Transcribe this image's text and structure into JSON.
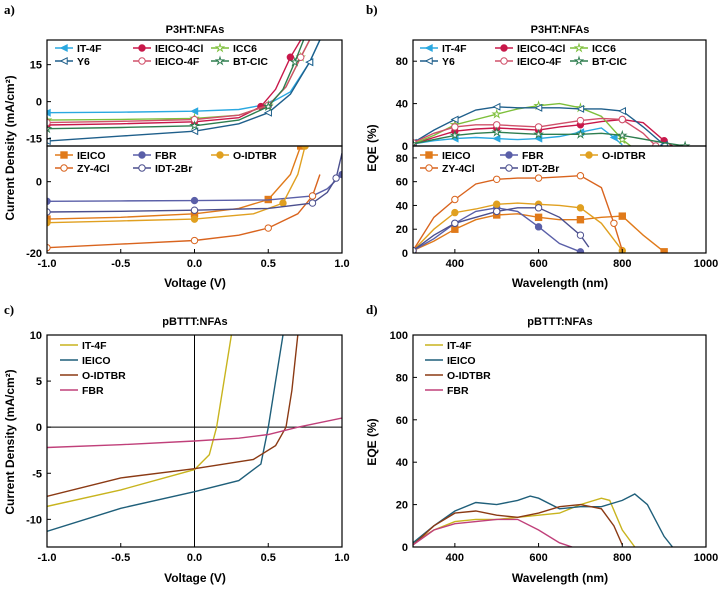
{
  "panel_labels": [
    "a)",
    "b)",
    "c)",
    "d)"
  ],
  "chart_data": [
    {
      "id": "a_top",
      "type": "line",
      "title": "P3HT:NFAs",
      "xlabel": "Voltage (V)",
      "ylabel": "Current Density (mA/cm²)",
      "xlim": [
        -1.0,
        1.0
      ],
      "ylim": [
        -18,
        25
      ],
      "yticks": [
        -15,
        0,
        15
      ],
      "xticks": [],
      "series": [
        {
          "name": "IT-4F",
          "color": "#2aa8e0",
          "marker": "triangle-left",
          "filled": true,
          "x": [
            -1.0,
            -0.5,
            0.0,
            0.3,
            0.5,
            0.65,
            0.78,
            0.85
          ],
          "y": [
            -4.5,
            -4.3,
            -3.9,
            -3.2,
            -1.0,
            4.0,
            16.0,
            25.0
          ]
        },
        {
          "name": "IEICO-4Cl",
          "color": "#c8184a",
          "marker": "circle",
          "filled": true,
          "x": [
            -1.0,
            -0.5,
            0.0,
            0.3,
            0.45,
            0.55,
            0.65,
            0.72
          ],
          "y": [
            -9.5,
            -9.0,
            -8.2,
            -6.5,
            -2.0,
            5.0,
            18.0,
            25.0
          ]
        },
        {
          "name": "ICC6",
          "color": "#7dbf3a",
          "marker": "star",
          "filled": false,
          "x": [
            -1.0,
            -0.5,
            0.0,
            0.3,
            0.5,
            0.62,
            0.72,
            0.78
          ],
          "y": [
            -7.5,
            -7.2,
            -6.8,
            -5.5,
            -1.5,
            6.0,
            18.0,
            25.0
          ]
        },
        {
          "name": "Y6",
          "color": "#1f5f8b",
          "marker": "triangle-left",
          "filled": false,
          "x": [
            -1.0,
            -0.5,
            0.0,
            0.3,
            0.5,
            0.65,
            0.78,
            0.85
          ],
          "y": [
            -16.0,
            -14.0,
            -12.0,
            -9.0,
            -4.5,
            3.0,
            16.0,
            25.0
          ]
        },
        {
          "name": "IEICO-4F",
          "color": "#d0506a",
          "marker": "circle",
          "filled": false,
          "x": [
            -1.0,
            -0.5,
            0.0,
            0.3,
            0.5,
            0.62,
            0.72,
            0.78
          ],
          "y": [
            -8.5,
            -8.0,
            -7.3,
            -5.5,
            -1.5,
            6.0,
            18.0,
            25.0
          ]
        },
        {
          "name": "BT-CIC",
          "color": "#2e7d4f",
          "marker": "star",
          "filled": false,
          "x": [
            -1.0,
            -0.5,
            0.0,
            0.3,
            0.5,
            0.6,
            0.68,
            0.74
          ],
          "y": [
            -11.0,
            -10.5,
            -9.8,
            -7.5,
            -2.0,
            5.0,
            16.0,
            25.0
          ]
        }
      ]
    },
    {
      "id": "a_bottom",
      "type": "line",
      "title": "",
      "xlabel": "Voltage (V)",
      "ylabel": "Current Density (mA/cm²)",
      "xlim": [
        -1.0,
        1.0
      ],
      "ylim": [
        -20,
        10
      ],
      "yticks": [
        -20,
        0
      ],
      "xticks": [
        "-1.0",
        "-0.5",
        "0.0",
        "0.5",
        "1.0"
      ],
      "series": [
        {
          "name": "IEICO",
          "color": "#e07a1a",
          "marker": "square",
          "filled": true,
          "x": [
            -1.0,
            -0.5,
            0.0,
            0.3,
            0.5,
            0.65,
            0.72
          ],
          "y": [
            -10.5,
            -10.0,
            -9.0,
            -7.5,
            -5.0,
            2.0,
            10.0
          ]
        },
        {
          "name": "FBR",
          "color": "#5a5fa8",
          "marker": "circle",
          "filled": true,
          "x": [
            -1.0,
            -0.5,
            0.0,
            0.5,
            0.8,
            0.9,
            1.0
          ],
          "y": [
            -5.5,
            -5.4,
            -5.3,
            -5.1,
            -4.0,
            -2.0,
            2.0
          ]
        },
        {
          "name": "O-IDTBR",
          "color": "#e0a020",
          "marker": "circle",
          "filled": true,
          "x": [
            -1.0,
            -0.5,
            0.0,
            0.4,
            0.6,
            0.7,
            0.75
          ],
          "y": [
            -11.5,
            -11.0,
            -10.5,
            -9.0,
            -6.0,
            2.0,
            10.0
          ]
        },
        {
          "name": "ZY-4Cl",
          "color": "#d9641e",
          "marker": "circle",
          "filled": false,
          "x": [
            -1.0,
            -0.5,
            0.0,
            0.3,
            0.5,
            0.7,
            0.8,
            0.85
          ],
          "y": [
            -18.5,
            -17.5,
            -16.5,
            -15.0,
            -13.0,
            -9.0,
            -4.0,
            2.0
          ]
        },
        {
          "name": "IDT-2Br",
          "color": "#4b4f8e",
          "marker": "circle",
          "filled": false,
          "x": [
            -1.0,
            -0.5,
            0.0,
            0.5,
            0.8,
            0.9,
            0.96,
            1.0
          ],
          "y": [
            -8.5,
            -8.3,
            -8.0,
            -7.5,
            -6.0,
            -3.0,
            1.0,
            8.0
          ]
        }
      ]
    },
    {
      "id": "b_top",
      "type": "line",
      "title": "P3HT:NFAs",
      "xlabel": "Wavelength (nm)",
      "ylabel": "EQE (%)",
      "xlim": [
        300,
        1000
      ],
      "ylim": [
        0,
        100
      ],
      "yticks": [
        0,
        40,
        80
      ],
      "xticks": [],
      "series": [
        {
          "name": "IT-4F",
          "color": "#2aa8e0",
          "marker": "triangle-left",
          "filled": true,
          "x": [
            300,
            350,
            400,
            450,
            500,
            550,
            600,
            650,
            700,
            750,
            780,
            800
          ],
          "y": [
            2,
            5,
            7,
            8,
            7,
            6,
            7,
            9,
            13,
            17,
            8,
            1
          ]
        },
        {
          "name": "IEICO-4Cl",
          "color": "#c8184a",
          "marker": "circle",
          "filled": true,
          "x": [
            300,
            350,
            400,
            450,
            500,
            550,
            600,
            650,
            700,
            750,
            800,
            850,
            900,
            920
          ],
          "y": [
            2,
            8,
            14,
            16,
            17,
            16,
            15,
            18,
            20,
            23,
            25,
            22,
            5,
            0
          ]
        },
        {
          "name": "ICC6",
          "color": "#7dbf3a",
          "marker": "star",
          "filled": false,
          "x": [
            300,
            350,
            400,
            450,
            500,
            550,
            600,
            650,
            700,
            750,
            800,
            820
          ],
          "y": [
            2,
            10,
            20,
            25,
            30,
            35,
            38,
            40,
            36,
            28,
            6,
            0
          ]
        },
        {
          "name": "Y6",
          "color": "#1f5f8b",
          "marker": "triangle-left",
          "filled": false,
          "x": [
            300,
            350,
            400,
            450,
            500,
            550,
            600,
            650,
            700,
            750,
            800,
            850,
            900
          ],
          "y": [
            3,
            15,
            25,
            34,
            37,
            36,
            36,
            36,
            35,
            35,
            33,
            18,
            1
          ]
        },
        {
          "name": "IEICO-4F",
          "color": "#d0506a",
          "marker": "circle",
          "filled": false,
          "x": [
            300,
            350,
            400,
            450,
            500,
            550,
            600,
            650,
            700,
            750,
            800,
            850,
            880
          ],
          "y": [
            3,
            12,
            18,
            20,
            20,
            19,
            18,
            21,
            24,
            26,
            25,
            12,
            0
          ]
        },
        {
          "name": "BT-CIC",
          "color": "#2e7d4f",
          "marker": "star",
          "filled": false,
          "x": [
            300,
            350,
            400,
            450,
            500,
            550,
            600,
            650,
            700,
            750,
            800,
            900,
            950
          ],
          "y": [
            2,
            6,
            10,
            12,
            13,
            12,
            11,
            11,
            11,
            12,
            10,
            3,
            0
          ]
        }
      ]
    },
    {
      "id": "b_bottom",
      "type": "line",
      "title": "",
      "xlabel": "Wavelength (nm)",
      "ylabel": "EQE (%)",
      "xlim": [
        300,
        1000
      ],
      "ylim": [
        0,
        90
      ],
      "yticks": [
        0,
        20,
        40,
        60,
        80
      ],
      "xticks": [
        "400",
        "600",
        "800",
        "1000"
      ],
      "series": [
        {
          "name": "IEICO",
          "color": "#e07a1a",
          "marker": "square",
          "filled": true,
          "x": [
            300,
            350,
            400,
            450,
            500,
            550,
            600,
            650,
            700,
            750,
            800,
            850,
            900
          ],
          "y": [
            2,
            10,
            20,
            28,
            32,
            33,
            30,
            28,
            28,
            30,
            31,
            15,
            1
          ]
        },
        {
          "name": "FBR",
          "color": "#5a5fa8",
          "marker": "circle",
          "filled": true,
          "x": [
            300,
            350,
            400,
            450,
            500,
            550,
            600,
            650,
            700
          ],
          "y": [
            2,
            12,
            25,
            35,
            38,
            35,
            22,
            8,
            1
          ]
        },
        {
          "name": "O-IDTBR",
          "color": "#e0a020",
          "marker": "circle",
          "filled": true,
          "x": [
            300,
            350,
            400,
            450,
            500,
            550,
            600,
            650,
            700,
            750,
            800
          ],
          "y": [
            2,
            20,
            34,
            37,
            41,
            42,
            41,
            40,
            38,
            25,
            2
          ]
        },
        {
          "name": "ZY-4Cl",
          "color": "#d9641e",
          "marker": "circle",
          "filled": false,
          "x": [
            300,
            350,
            400,
            450,
            500,
            550,
            600,
            650,
            700,
            750,
            780,
            800
          ],
          "y": [
            2,
            30,
            45,
            58,
            62,
            63,
            63,
            64,
            65,
            55,
            25,
            2
          ]
        },
        {
          "name": "IDT-2Br",
          "color": "#4b4f8e",
          "marker": "circle",
          "filled": false,
          "x": [
            300,
            350,
            400,
            450,
            500,
            550,
            600,
            650,
            700,
            720
          ],
          "y": [
            2,
            15,
            25,
            30,
            35,
            38,
            38,
            30,
            15,
            5
          ]
        }
      ]
    },
    {
      "id": "c",
      "type": "line",
      "title": "pBTTT:NFAs",
      "xlabel": "Voltage (V)",
      "ylabel": "Current Density (mA/cm²)",
      "xlim": [
        -1.0,
        1.0
      ],
      "ylim": [
        -13,
        10
      ],
      "yticks": [
        -10,
        -5,
        0,
        5,
        10
      ],
      "xticks": [
        "-1.0",
        "-0.5",
        "0.0",
        "0.5",
        "1.0"
      ],
      "series": [
        {
          "name": "IT-4F",
          "color": "#c8b41e",
          "marker": "none",
          "filled": false,
          "x": [
            -1.0,
            -0.5,
            0.0,
            0.1,
            0.15,
            0.2,
            0.25
          ],
          "y": [
            -8.6,
            -6.8,
            -4.6,
            -3.0,
            0.0,
            5.0,
            10.0
          ]
        },
        {
          "name": "IEICO",
          "color": "#1f5f7a",
          "marker": "none",
          "filled": false,
          "x": [
            -1.0,
            -0.5,
            0.0,
            0.3,
            0.45,
            0.5,
            0.55,
            0.6
          ],
          "y": [
            -11.3,
            -8.8,
            -7.0,
            -5.8,
            -4.0,
            0.0,
            5.0,
            10.0
          ]
        },
        {
          "name": "O-IDTBR",
          "color": "#8b3a14",
          "marker": "none",
          "filled": false,
          "x": [
            -1.0,
            -0.5,
            0.0,
            0.4,
            0.55,
            0.62,
            0.66,
            0.7
          ],
          "y": [
            -7.5,
            -5.5,
            -4.5,
            -3.5,
            -2.0,
            0.0,
            4.0,
            10.0
          ]
        },
        {
          "name": "FBR",
          "color": "#c0407a",
          "marker": "none",
          "filled": false,
          "x": [
            -1.0,
            -0.5,
            0.0,
            0.3,
            0.5,
            0.7,
            1.0
          ],
          "y": [
            -2.2,
            -1.9,
            -1.5,
            -1.2,
            -0.8,
            0.0,
            1.0
          ]
        }
      ]
    },
    {
      "id": "d",
      "type": "line",
      "title": "pBTTT:NFAs",
      "xlabel": "Wavelength (nm)",
      "ylabel": "EQE (%)",
      "xlim": [
        300,
        1000
      ],
      "ylim": [
        0,
        100
      ],
      "yticks": [
        0,
        20,
        40,
        60,
        80,
        100
      ],
      "xticks": [
        "400",
        "600",
        "800",
        "1000"
      ],
      "series": [
        {
          "name": "IT-4F",
          "color": "#c8b41e",
          "marker": "none",
          "filled": false,
          "x": [
            300,
            350,
            400,
            450,
            500,
            550,
            600,
            650,
            700,
            750,
            770,
            800,
            830
          ],
          "y": [
            2,
            8,
            12,
            13,
            13,
            14,
            15,
            16,
            20,
            23,
            22,
            8,
            0
          ]
        },
        {
          "name": "IEICO",
          "color": "#1f5f7a",
          "marker": "none",
          "filled": false,
          "x": [
            300,
            350,
            400,
            450,
            500,
            550,
            580,
            600,
            650,
            700,
            750,
            800,
            830,
            860,
            900,
            920
          ],
          "y": [
            2,
            10,
            17,
            21,
            20,
            22,
            24,
            23,
            18,
            19,
            19,
            22,
            25,
            20,
            5,
            0
          ]
        },
        {
          "name": "O-IDTBR",
          "color": "#8b3a14",
          "marker": "none",
          "filled": false,
          "x": [
            300,
            350,
            400,
            450,
            500,
            550,
            600,
            650,
            700,
            750,
            780,
            800
          ],
          "y": [
            1,
            10,
            16,
            17,
            15,
            14,
            16,
            19,
            20,
            18,
            10,
            1
          ]
        },
        {
          "name": "FBR",
          "color": "#c0407a",
          "marker": "none",
          "filled": false,
          "x": [
            300,
            350,
            400,
            450,
            500,
            550,
            600,
            650,
            680
          ],
          "y": [
            1,
            8,
            11,
            12,
            13,
            13,
            8,
            2,
            0
          ]
        }
      ]
    }
  ]
}
